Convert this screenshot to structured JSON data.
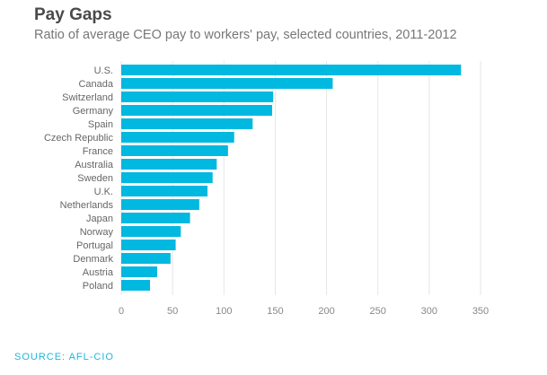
{
  "chart_data": {
    "type": "bar",
    "orientation": "horizontal",
    "title": "Pay Gaps",
    "subtitle": "Ratio of average CEO pay to workers' pay, selected countries, 2011-2012",
    "categories": [
      "U.S.",
      "Canada",
      "Switzerland",
      "Germany",
      "Spain",
      "Czech Republic",
      "France",
      "Australia",
      "Sweden",
      "U.K.",
      "Netherlands",
      "Japan",
      "Norway",
      "Portugal",
      "Denmark",
      "Austria",
      "Poland"
    ],
    "values": [
      331,
      206,
      148,
      147,
      128,
      110,
      104,
      93,
      89,
      84,
      76,
      67,
      58,
      53,
      48,
      35,
      28
    ],
    "xlim": [
      0,
      350
    ],
    "xticks": [
      0,
      50,
      100,
      150,
      200,
      250,
      300,
      350
    ],
    "grid": true,
    "bar_color": "#00b8e0",
    "source": "SOURCE: AFL-CIO"
  }
}
